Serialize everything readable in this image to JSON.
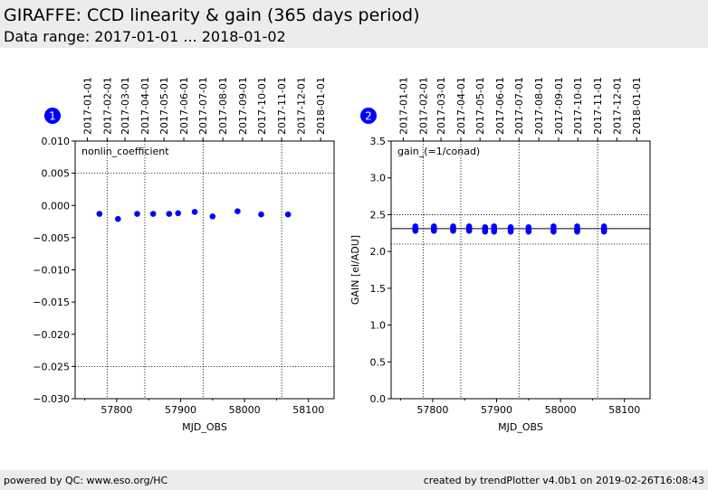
{
  "header": {
    "title": "GIRAFFE: CCD linearity & gain (365 days period)",
    "subtitle": "Data range: 2017-01-01 ... 2018-01-02"
  },
  "footer": {
    "left": "powered by QC: www.eso.org/HC",
    "right": "created by trendPlotter v4.0b1 on 2019-02-26T16:08:43"
  },
  "colors": {
    "points": "#0000ff",
    "badge": "#0000ff",
    "header_bg": "#ececec"
  },
  "chart_data": [
    {
      "type": "scatter",
      "badge": "1",
      "annotation": "nonlin_coefficient",
      "xlabel": "MJD_OBS",
      "ylabel": "",
      "xlim": [
        57735,
        58140
      ],
      "ylim": [
        -0.03,
        0.01
      ],
      "x_ticks": [
        57800,
        57900,
        58000,
        58100
      ],
      "x_tick_labels": [
        "57800",
        "57900",
        "58000",
        "58100"
      ],
      "y_ticks": [
        0.01,
        0.005,
        0.0,
        -0.005,
        -0.01,
        -0.015,
        -0.02,
        -0.025,
        -0.03
      ],
      "y_tick_labels": [
        "0.010",
        "0.005",
        "0.000",
        "−0.005",
        "−0.010",
        "−0.015",
        "−0.020",
        "−0.025",
        "−0.030"
      ],
      "date_ticks": [
        "2017-01-01",
        "2017-02-01",
        "2017-03-01",
        "2017-04-01",
        "2017-05-01",
        "2017-06-01",
        "2017-07-01",
        "2017-08-01",
        "2017-09-01",
        "2017-10-01",
        "2017-11-01",
        "2017-12-01",
        "2018-01-01"
      ],
      "date_ticks_mjd": [
        57754,
        57785,
        57813,
        57844,
        57874,
        57905,
        57935,
        57966,
        57997,
        58027,
        58058,
        58088,
        58119
      ],
      "vlines_mjd": [
        57785,
        57844,
        57935,
        58058
      ],
      "hlines": [
        0.005,
        -0.025
      ],
      "series": [
        {
          "x": [
            57773,
            57802,
            57832,
            57857,
            57882,
            57896,
            57922,
            57950,
            57989,
            58026,
            58068
          ],
          "y": [
            -0.0013,
            -0.0021,
            -0.0013,
            -0.0013,
            -0.0013,
            -0.0012,
            -0.001,
            -0.0017,
            -0.0009,
            -0.0014,
            -0.0014
          ]
        }
      ]
    },
    {
      "type": "scatter",
      "badge": "2",
      "annotation": "gain_(=1/conad)",
      "xlabel": "MJD_OBS",
      "ylabel": "GAIN [el/ADU]",
      "xlim": [
        57735,
        58140
      ],
      "ylim": [
        0.0,
        3.5
      ],
      "x_ticks": [
        57800,
        57900,
        58000,
        58100
      ],
      "x_tick_labels": [
        "57800",
        "57900",
        "58000",
        "58100"
      ],
      "y_ticks": [
        3.5,
        3.0,
        2.5,
        2.0,
        1.5,
        1.0,
        0.5,
        0.0
      ],
      "y_tick_labels": [
        "3.5",
        "3.0",
        "2.5",
        "2.0",
        "1.5",
        "1.0",
        "0.5",
        "0.0"
      ],
      "date_ticks": [
        "2017-01-01",
        "2017-02-01",
        "2017-03-01",
        "2017-04-01",
        "2017-05-01",
        "2017-06-01",
        "2017-07-01",
        "2017-08-01",
        "2017-09-01",
        "2017-10-01",
        "2017-11-01",
        "2017-12-01",
        "2018-01-01"
      ],
      "date_ticks_mjd": [
        57754,
        57785,
        57813,
        57844,
        57874,
        57905,
        57935,
        57966,
        57997,
        58027,
        58058,
        58088,
        58119
      ],
      "vlines_mjd": [
        57785,
        57844,
        57935,
        58058
      ],
      "hlines": [
        2.5,
        2.1
      ],
      "reference_line": 2.31,
      "series": [
        {
          "x": [
            57773,
            57773,
            57773,
            57773,
            57802,
            57802,
            57802,
            57802,
            57832,
            57832,
            57832,
            57832,
            57857,
            57857,
            57857,
            57857,
            57882,
            57882,
            57882,
            57882,
            57896,
            57896,
            57896,
            57896,
            57922,
            57922,
            57922,
            57922,
            57950,
            57950,
            57950,
            57950,
            57989,
            57989,
            57989,
            57989,
            58026,
            58026,
            58026,
            58026,
            58068,
            58068,
            58068,
            58068
          ],
          "y": [
            2.28,
            2.3,
            2.32,
            2.34,
            2.28,
            2.3,
            2.32,
            2.34,
            2.28,
            2.3,
            2.32,
            2.34,
            2.28,
            2.3,
            2.32,
            2.34,
            2.27,
            2.29,
            2.31,
            2.33,
            2.27,
            2.29,
            2.31,
            2.34,
            2.27,
            2.29,
            2.31,
            2.33,
            2.27,
            2.29,
            2.31,
            2.33,
            2.27,
            2.29,
            2.31,
            2.34,
            2.27,
            2.29,
            2.31,
            2.34,
            2.27,
            2.29,
            2.31,
            2.34
          ]
        }
      ]
    }
  ]
}
